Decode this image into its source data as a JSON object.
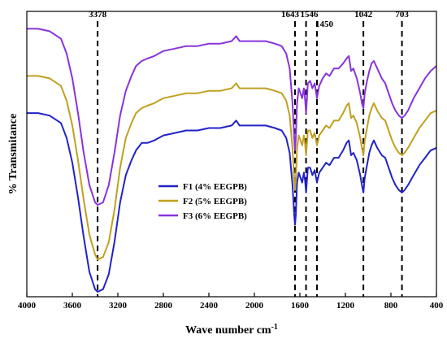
{
  "chart_data": {
    "type": "line",
    "xlabel": "Wave number cm",
    "xlabel_superscript": "-1",
    "ylabel": "% Transmitance",
    "xlim": [
      4000,
      400
    ],
    "x_reversed": true,
    "x_ticks": [
      "4000",
      "3600",
      "3200",
      "2800",
      "2400",
      "2000",
      "1600",
      "1200",
      "800",
      "400"
    ],
    "legend_position": "center",
    "peak_markers": [
      3378,
      1643,
      1546,
      1450,
      1042,
      703
    ],
    "peak_labels": [
      "3378",
      "1643",
      "1546",
      "1450",
      "1042",
      "703"
    ],
    "series": [
      {
        "name": "F1 (4% EEGPB)",
        "color": "#2222c8",
        "points": [
          [
            4000,
            74
          ],
          [
            3900,
            74
          ],
          [
            3800,
            73
          ],
          [
            3700,
            70
          ],
          [
            3650,
            64
          ],
          [
            3600,
            54
          ],
          [
            3550,
            40
          ],
          [
            3500,
            24
          ],
          [
            3450,
            10
          ],
          [
            3400,
            3
          ],
          [
            3378,
            2
          ],
          [
            3330,
            3
          ],
          [
            3280,
            9
          ],
          [
            3230,
            22
          ],
          [
            3180,
            38
          ],
          [
            3130,
            49
          ],
          [
            3080,
            55
          ],
          [
            3040,
            59
          ],
          [
            2990,
            62
          ],
          [
            2940,
            62
          ],
          [
            2880,
            63
          ],
          [
            2800,
            65
          ],
          [
            2700,
            66
          ],
          [
            2600,
            67
          ],
          [
            2500,
            67
          ],
          [
            2400,
            68
          ],
          [
            2300,
            68
          ],
          [
            2200,
            69
          ],
          [
            2160,
            71
          ],
          [
            2130,
            69
          ],
          [
            2100,
            69
          ],
          [
            2000,
            69
          ],
          [
            1900,
            69
          ],
          [
            1820,
            68
          ],
          [
            1760,
            67
          ],
          [
            1720,
            64
          ],
          [
            1690,
            58
          ],
          [
            1665,
            45
          ],
          [
            1650,
            33
          ],
          [
            1643,
            29
          ],
          [
            1636,
            33
          ],
          [
            1625,
            46
          ],
          [
            1610,
            50
          ],
          [
            1595,
            48
          ],
          [
            1580,
            46
          ],
          [
            1565,
            50
          ],
          [
            1555,
            47
          ],
          [
            1546,
            42
          ],
          [
            1530,
            52
          ],
          [
            1510,
            52
          ],
          [
            1490,
            49
          ],
          [
            1470,
            51
          ],
          [
            1450,
            46
          ],
          [
            1430,
            50
          ],
          [
            1400,
            52
          ],
          [
            1370,
            54
          ],
          [
            1340,
            53
          ],
          [
            1300,
            56
          ],
          [
            1260,
            56
          ],
          [
            1220,
            59
          ],
          [
            1190,
            62
          ],
          [
            1170,
            63
          ],
          [
            1150,
            57
          ],
          [
            1130,
            58
          ],
          [
            1100,
            55
          ],
          [
            1070,
            49
          ],
          [
            1055,
            45
          ],
          [
            1042,
            42
          ],
          [
            1030,
            48
          ],
          [
            1010,
            53
          ],
          [
            990,
            58
          ],
          [
            970,
            61
          ],
          [
            950,
            63
          ],
          [
            920,
            60
          ],
          [
            880,
            57
          ],
          [
            850,
            56
          ],
          [
            820,
            52
          ],
          [
            790,
            48
          ],
          [
            760,
            45
          ],
          [
            730,
            43
          ],
          [
            703,
            42
          ],
          [
            680,
            43
          ],
          [
            650,
            45
          ],
          [
            600,
            49
          ],
          [
            550,
            53
          ],
          [
            500,
            56
          ],
          [
            450,
            59
          ],
          [
            400,
            60
          ]
        ]
      },
      {
        "name": "F2 (5% EEGPB)",
        "color": "#c0a020",
        "points": [
          [
            4000,
            89
          ],
          [
            3900,
            89
          ],
          [
            3800,
            88
          ],
          [
            3700,
            85
          ],
          [
            3650,
            79
          ],
          [
            3600,
            69
          ],
          [
            3550,
            55
          ],
          [
            3500,
            39
          ],
          [
            3450,
            25
          ],
          [
            3400,
            17
          ],
          [
            3378,
            15
          ],
          [
            3330,
            16
          ],
          [
            3280,
            22
          ],
          [
            3230,
            35
          ],
          [
            3180,
            52
          ],
          [
            3130,
            64
          ],
          [
            3080,
            70
          ],
          [
            3040,
            74
          ],
          [
            2990,
            76
          ],
          [
            2940,
            77
          ],
          [
            2880,
            78
          ],
          [
            2800,
            80
          ],
          [
            2700,
            81
          ],
          [
            2600,
            82
          ],
          [
            2500,
            82
          ],
          [
            2400,
            83
          ],
          [
            2300,
            83
          ],
          [
            2200,
            84
          ],
          [
            2160,
            86
          ],
          [
            2130,
            84
          ],
          [
            2100,
            84
          ],
          [
            2000,
            84
          ],
          [
            1900,
            84
          ],
          [
            1820,
            83
          ],
          [
            1760,
            82
          ],
          [
            1720,
            79
          ],
          [
            1690,
            73
          ],
          [
            1665,
            60
          ],
          [
            1650,
            47
          ],
          [
            1643,
            43
          ],
          [
            1636,
            47
          ],
          [
            1625,
            60
          ],
          [
            1610,
            65
          ],
          [
            1595,
            63
          ],
          [
            1580,
            61
          ],
          [
            1565,
            65
          ],
          [
            1555,
            62
          ],
          [
            1546,
            57
          ],
          [
            1530,
            67
          ],
          [
            1510,
            67
          ],
          [
            1490,
            64
          ],
          [
            1470,
            66
          ],
          [
            1450,
            61
          ],
          [
            1430,
            65
          ],
          [
            1400,
            67
          ],
          [
            1370,
            69
          ],
          [
            1340,
            68
          ],
          [
            1300,
            71
          ],
          [
            1260,
            71
          ],
          [
            1220,
            74
          ],
          [
            1190,
            77
          ],
          [
            1170,
            78
          ],
          [
            1150,
            72
          ],
          [
            1130,
            73
          ],
          [
            1100,
            70
          ],
          [
            1070,
            64
          ],
          [
            1055,
            60
          ],
          [
            1042,
            57
          ],
          [
            1030,
            63
          ],
          [
            1010,
            68
          ],
          [
            990,
            73
          ],
          [
            970,
            76
          ],
          [
            950,
            78
          ],
          [
            920,
            75
          ],
          [
            880,
            72
          ],
          [
            850,
            71
          ],
          [
            820,
            67
          ],
          [
            790,
            63
          ],
          [
            760,
            60
          ],
          [
            730,
            58
          ],
          [
            703,
            57
          ],
          [
            680,
            58
          ],
          [
            650,
            60
          ],
          [
            600,
            64
          ],
          [
            550,
            68
          ],
          [
            500,
            71
          ],
          [
            450,
            74
          ],
          [
            400,
            75
          ]
        ]
      },
      {
        "name": "F3 (6% EEGPB)",
        "color": "#8833dd",
        "points": [
          [
            4000,
            108
          ],
          [
            3900,
            108
          ],
          [
            3800,
            107
          ],
          [
            3700,
            104
          ],
          [
            3650,
            98
          ],
          [
            3600,
            88
          ],
          [
            3550,
            74
          ],
          [
            3500,
            58
          ],
          [
            3450,
            45
          ],
          [
            3400,
            38
          ],
          [
            3378,
            37
          ],
          [
            3330,
            38
          ],
          [
            3280,
            45
          ],
          [
            3230,
            58
          ],
          [
            3180,
            73
          ],
          [
            3130,
            83
          ],
          [
            3080,
            89
          ],
          [
            3040,
            93
          ],
          [
            2990,
            95
          ],
          [
            2940,
            96
          ],
          [
            2880,
            97
          ],
          [
            2800,
            99
          ],
          [
            2700,
            100
          ],
          [
            2600,
            101
          ],
          [
            2500,
            101
          ],
          [
            2400,
            102
          ],
          [
            2300,
            102
          ],
          [
            2200,
            103
          ],
          [
            2160,
            105
          ],
          [
            2130,
            103
          ],
          [
            2100,
            103
          ],
          [
            2000,
            103
          ],
          [
            1900,
            103
          ],
          [
            1820,
            102
          ],
          [
            1760,
            101
          ],
          [
            1720,
            98
          ],
          [
            1690,
            92
          ],
          [
            1665,
            78
          ],
          [
            1650,
            64
          ],
          [
            1643,
            59
          ],
          [
            1636,
            64
          ],
          [
            1625,
            78
          ],
          [
            1610,
            84
          ],
          [
            1595,
            82
          ],
          [
            1580,
            80
          ],
          [
            1565,
            84
          ],
          [
            1555,
            80
          ],
          [
            1546,
            74
          ],
          [
            1530,
            86
          ],
          [
            1510,
            87
          ],
          [
            1490,
            84
          ],
          [
            1470,
            86
          ],
          [
            1450,
            80
          ],
          [
            1430,
            85
          ],
          [
            1400,
            88
          ],
          [
            1370,
            90
          ],
          [
            1340,
            89
          ],
          [
            1300,
            92
          ],
          [
            1260,
            92
          ],
          [
            1220,
            94
          ],
          [
            1190,
            96
          ],
          [
            1170,
            97
          ],
          [
            1150,
            91
          ],
          [
            1130,
            92
          ],
          [
            1100,
            88
          ],
          [
            1070,
            82
          ],
          [
            1055,
            78
          ],
          [
            1042,
            76
          ],
          [
            1030,
            82
          ],
          [
            1010,
            87
          ],
          [
            990,
            91
          ],
          [
            970,
            94
          ],
          [
            950,
            95
          ],
          [
            920,
            92
          ],
          [
            880,
            88
          ],
          [
            850,
            86
          ],
          [
            820,
            82
          ],
          [
            790,
            78
          ],
          [
            760,
            75
          ],
          [
            730,
            73
          ],
          [
            703,
            72
          ],
          [
            680,
            73
          ],
          [
            650,
            75
          ],
          [
            600,
            80
          ],
          [
            550,
            84
          ],
          [
            500,
            88
          ],
          [
            450,
            91
          ],
          [
            400,
            93
          ]
        ]
      }
    ]
  }
}
